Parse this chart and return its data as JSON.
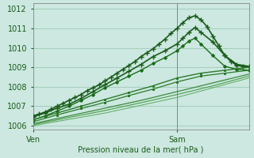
{
  "bg_color": "#cce8e0",
  "grid_color": "#a0c8b8",
  "xlabel": "Pression niveau de la mer( hPa )",
  "ylim": [
    1005.8,
    1012.3
  ],
  "xlim": [
    0,
    36
  ],
  "xtick_positions": [
    0,
    24
  ],
  "xtick_labels": [
    "Ven",
    "Sam"
  ],
  "ytick_positions": [
    1006,
    1007,
    1008,
    1009,
    1010,
    1011,
    1012
  ],
  "vline_x": 24,
  "series": [
    {
      "x": [
        0,
        1,
        2,
        3,
        4,
        5,
        6,
        7,
        8,
        9,
        10,
        11,
        12,
        13,
        14,
        15,
        16,
        17,
        18,
        19,
        20,
        21,
        22,
        23,
        24,
        25,
        26,
        27,
        28,
        29,
        30,
        31,
        32,
        33,
        34,
        35,
        36
      ],
      "y": [
        1006.5,
        1006.6,
        1006.7,
        1006.85,
        1007.0,
        1007.15,
        1007.3,
        1007.45,
        1007.6,
        1007.8,
        1007.95,
        1008.1,
        1008.3,
        1008.5,
        1008.7,
        1008.9,
        1009.1,
        1009.3,
        1009.55,
        1009.75,
        1009.95,
        1010.2,
        1010.45,
        1010.75,
        1011.0,
        1011.3,
        1011.55,
        1011.65,
        1011.45,
        1011.1,
        1010.6,
        1010.1,
        1009.6,
        1009.3,
        1009.1,
        1009.05,
        1009.0
      ],
      "marker": "+",
      "lw": 1.2,
      "color": "#1a5c1a",
      "ms": 4,
      "mew": 1.0
    },
    {
      "x": [
        0,
        2,
        4,
        6,
        8,
        10,
        12,
        14,
        16,
        18,
        20,
        22,
        24,
        25,
        26,
        27,
        28,
        30,
        32,
        34,
        36
      ],
      "y": [
        1006.45,
        1006.65,
        1006.9,
        1007.1,
        1007.4,
        1007.75,
        1008.1,
        1008.45,
        1008.8,
        1009.15,
        1009.55,
        1009.85,
        1010.2,
        1010.5,
        1010.8,
        1011.05,
        1010.8,
        1010.3,
        1009.6,
        1009.15,
        1009.05
      ],
      "marker": "+",
      "lw": 1.2,
      "color": "#1a5c1a",
      "ms": 4,
      "mew": 1.0
    },
    {
      "x": [
        0,
        2,
        4,
        6,
        8,
        10,
        12,
        14,
        16,
        18,
        20,
        22,
        24,
        25,
        26,
        27,
        28,
        30,
        32,
        34,
        36
      ],
      "y": [
        1006.3,
        1006.5,
        1006.75,
        1007.0,
        1007.3,
        1007.6,
        1007.95,
        1008.25,
        1008.55,
        1008.85,
        1009.2,
        1009.5,
        1009.85,
        1010.1,
        1010.35,
        1010.5,
        1010.2,
        1009.6,
        1009.05,
        1008.9,
        1008.85
      ],
      "marker": "D",
      "lw": 1.0,
      "color": "#1a6c1a",
      "ms": 2,
      "mew": 0.8
    },
    {
      "x": [
        0,
        4,
        8,
        12,
        16,
        20,
        24,
        28,
        32,
        36
      ],
      "y": [
        1006.3,
        1006.65,
        1007.0,
        1007.35,
        1007.7,
        1008.05,
        1008.45,
        1008.7,
        1008.85,
        1009.0
      ],
      "marker": "s",
      "lw": 1.0,
      "color": "#2a7a2a",
      "ms": 2,
      "mew": 0.7
    },
    {
      "x": [
        0,
        4,
        8,
        12,
        16,
        20,
        24,
        28,
        32,
        36
      ],
      "y": [
        1006.2,
        1006.55,
        1006.88,
        1007.2,
        1007.55,
        1007.88,
        1008.25,
        1008.55,
        1008.7,
        1008.85
      ],
      "marker": "s",
      "lw": 0.9,
      "color": "#2a7a2a",
      "ms": 2,
      "mew": 0.7
    },
    {
      "x": [
        0,
        6,
        12,
        18,
        24,
        30,
        36
      ],
      "y": [
        1006.1,
        1006.5,
        1006.9,
        1007.3,
        1007.75,
        1008.2,
        1008.65
      ],
      "marker": null,
      "lw": 0.9,
      "color": "#3a8a3a",
      "ms": 2
    },
    {
      "x": [
        0,
        6,
        12,
        18,
        24,
        30,
        36
      ],
      "y": [
        1006.05,
        1006.42,
        1006.78,
        1007.18,
        1007.6,
        1008.05,
        1008.55
      ],
      "marker": null,
      "lw": 0.8,
      "color": "#4a9a4a",
      "ms": 2
    },
    {
      "x": [
        0,
        12,
        24,
        36
      ],
      "y": [
        1006.0,
        1006.65,
        1007.45,
        1008.45
      ],
      "marker": null,
      "lw": 0.7,
      "color": "#5aaa5a",
      "ms": 2
    }
  ]
}
